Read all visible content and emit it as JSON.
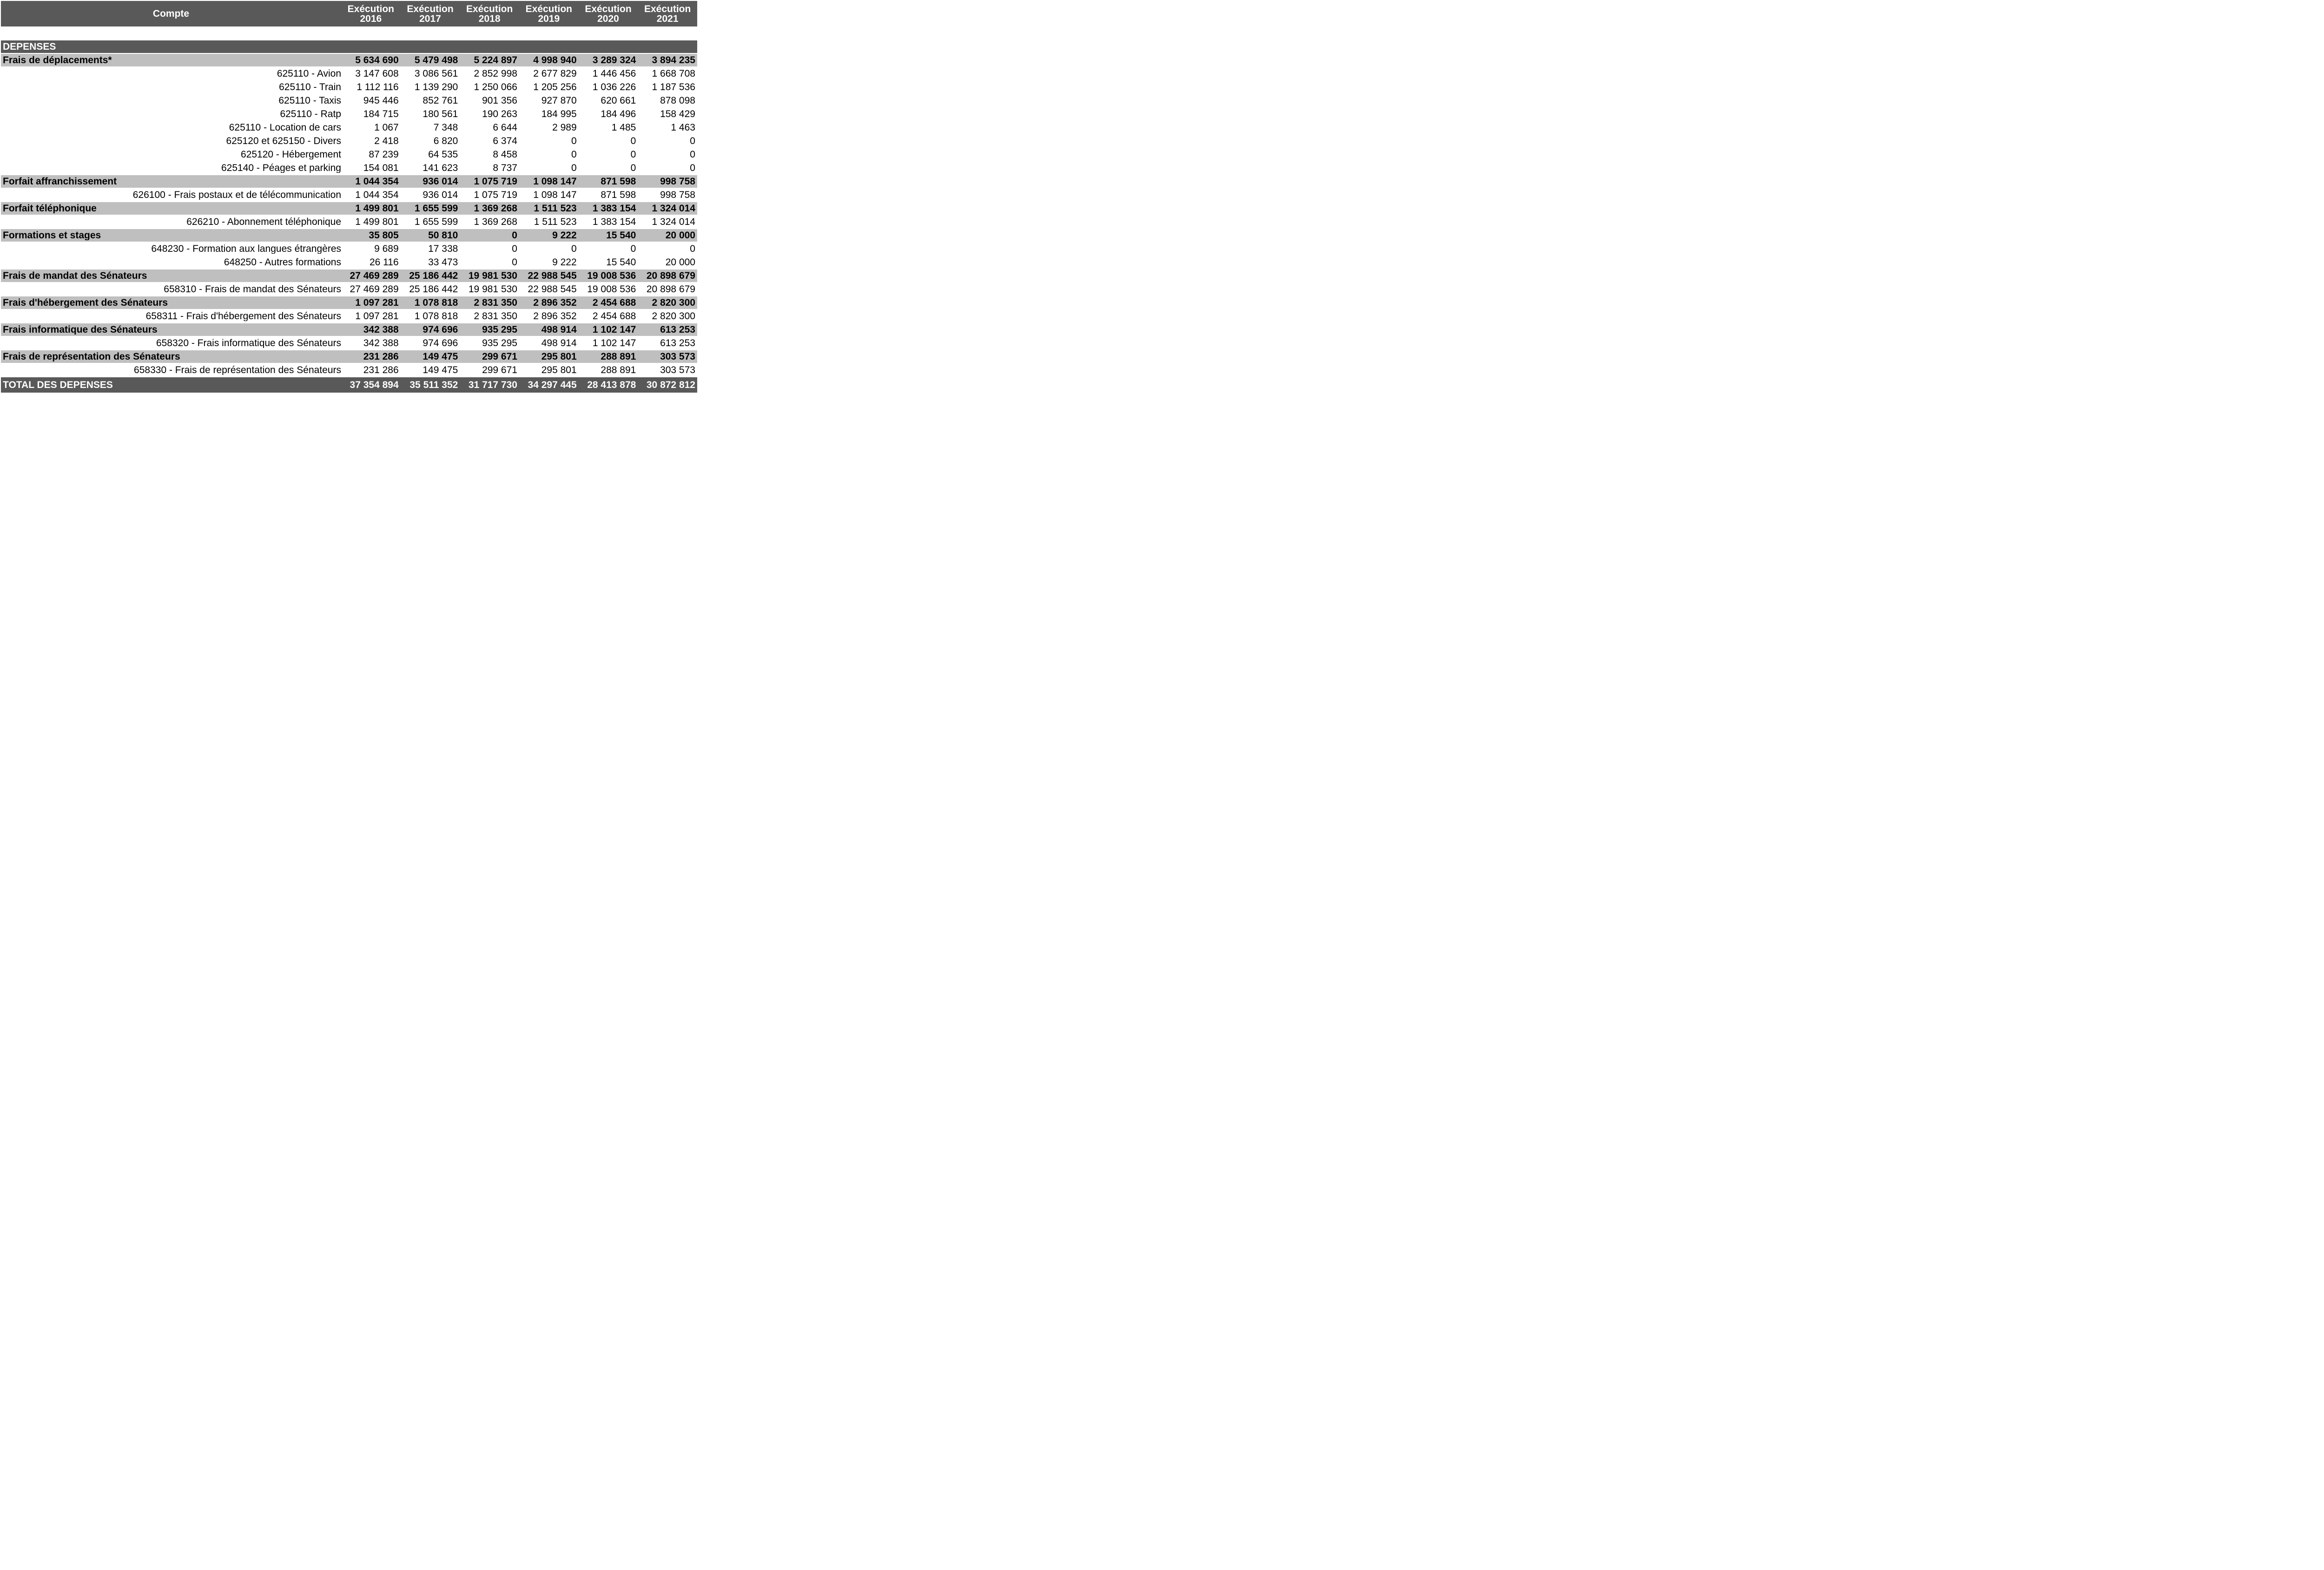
{
  "colors": {
    "header_band": "#595959",
    "section_band": "#bfbfbf",
    "page_background": "#ffffff",
    "header_text": "#ffffff",
    "body_text": "#000000"
  },
  "table": {
    "header": {
      "compte_label": "Compte",
      "year_columns": [
        {
          "label": "Exécution",
          "year": "2016"
        },
        {
          "label": "Exécution",
          "year": "2017"
        },
        {
          "label": "Exécution",
          "year": "2018"
        },
        {
          "label": "Exécution",
          "year": "2019"
        },
        {
          "label": "Exécution",
          "year": "2020"
        },
        {
          "label": "Exécution",
          "year": "2021"
        }
      ]
    },
    "rows": [
      {
        "style": "dark",
        "label": "DEPENSES",
        "values": [
          "",
          "",
          "",
          "",
          "",
          ""
        ]
      },
      {
        "style": "gray",
        "label": "Frais de déplacements*",
        "values": [
          "5 634 690",
          "5 479 498",
          "5 224 897",
          "4 998 940",
          "3 289 324",
          "3 894 235"
        ]
      },
      {
        "style": "detail",
        "label": "625110 - Avion",
        "values": [
          "3 147 608",
          "3 086 561",
          "2 852 998",
          "2 677 829",
          "1 446 456",
          "1 668 708"
        ]
      },
      {
        "style": "detail",
        "label": "625110 - Train",
        "values": [
          "1 112 116",
          "1 139 290",
          "1 250 066",
          "1 205 256",
          "1 036 226",
          "1 187 536"
        ]
      },
      {
        "style": "detail",
        "label": "625110 - Taxis",
        "values": [
          "945 446",
          "852 761",
          "901 356",
          "927 870",
          "620 661",
          "878 098"
        ]
      },
      {
        "style": "detail",
        "label": "625110 - Ratp",
        "values": [
          "184 715",
          "180 561",
          "190 263",
          "184 995",
          "184 496",
          "158 429"
        ]
      },
      {
        "style": "detail",
        "label": "625110 - Location de cars",
        "values": [
          "1 067",
          "7 348",
          "6 644",
          "2 989",
          "1 485",
          "1 463"
        ]
      },
      {
        "style": "detail",
        "label": "625120 et 625150 - Divers",
        "values": [
          "2 418",
          "6 820",
          "6 374",
          "0",
          "0",
          "0"
        ]
      },
      {
        "style": "detail",
        "label": "625120 - Hébergement",
        "values": [
          "87 239",
          "64 535",
          "8 458",
          "0",
          "0",
          "0"
        ]
      },
      {
        "style": "detail",
        "label": "625140 - Péages et parking",
        "values": [
          "154 081",
          "141 623",
          "8 737",
          "0",
          "0",
          "0"
        ]
      },
      {
        "style": "gray",
        "label": "Forfait affranchissement",
        "values": [
          "1 044 354",
          "936 014",
          "1 075 719",
          "1 098 147",
          "871 598",
          "998 758"
        ]
      },
      {
        "style": "detail",
        "label": "626100 - Frais postaux et de télécommunication",
        "values": [
          "1 044 354",
          "936 014",
          "1 075 719",
          "1 098 147",
          "871 598",
          "998 758"
        ]
      },
      {
        "style": "gray",
        "label": "Forfait téléphonique",
        "values": [
          "1 499 801",
          "1 655 599",
          "1 369 268",
          "1 511 523",
          "1 383 154",
          "1 324 014"
        ]
      },
      {
        "style": "detail",
        "label": "626210 - Abonnement téléphonique",
        "values": [
          "1 499 801",
          "1 655 599",
          "1 369 268",
          "1 511 523",
          "1 383 154",
          "1 324 014"
        ]
      },
      {
        "style": "gray",
        "label": "Formations et stages",
        "values": [
          "35 805",
          "50 810",
          "0",
          "9 222",
          "15 540",
          "20 000"
        ]
      },
      {
        "style": "detail",
        "label": "648230 - Formation aux langues étrangères",
        "values": [
          "9 689",
          "17 338",
          "0",
          "0",
          "0",
          "0"
        ]
      },
      {
        "style": "detail",
        "label": "648250 - Autres formations",
        "values": [
          "26 116",
          "33 473",
          "0",
          "9 222",
          "15 540",
          "20 000"
        ]
      },
      {
        "style": "gray",
        "label": "Frais de mandat des Sénateurs",
        "values": [
          "27 469 289",
          "25 186 442",
          "19 981 530",
          "22 988 545",
          "19 008 536",
          "20 898 679"
        ]
      },
      {
        "style": "detail",
        "label": "658310 - Frais de mandat des Sénateurs",
        "values": [
          "27 469 289",
          "25 186 442",
          "19 981 530",
          "22 988 545",
          "19 008 536",
          "20 898 679"
        ]
      },
      {
        "style": "gray",
        "label": "Frais d'hébergement des Sénateurs",
        "values": [
          "1 097 281",
          "1 078 818",
          "2 831 350",
          "2 896 352",
          "2 454 688",
          "2 820 300"
        ]
      },
      {
        "style": "detail",
        "label": "658311 - Frais d'hébergement des Sénateurs",
        "values": [
          "1 097 281",
          "1 078 818",
          "2 831 350",
          "2 896 352",
          "2 454 688",
          "2 820 300"
        ]
      },
      {
        "style": "gray",
        "label": "Frais informatique des Sénateurs",
        "values": [
          "342 388",
          "974 696",
          "935 295",
          "498 914",
          "1 102 147",
          "613 253"
        ]
      },
      {
        "style": "detail",
        "label": "658320 - Frais informatique des Sénateurs",
        "values": [
          "342 388",
          "974 696",
          "935 295",
          "498 914",
          "1 102 147",
          "613 253"
        ]
      },
      {
        "style": "gray",
        "label": "Frais de représentation des Sénateurs",
        "values": [
          "231 286",
          "149 475",
          "299 671",
          "295 801",
          "288 891",
          "303 573"
        ]
      },
      {
        "style": "detail",
        "label": "658330 - Frais de représentation des Sénateurs",
        "values": [
          "231 286",
          "149 475",
          "299 671",
          "295 801",
          "288 891",
          "303 573"
        ]
      },
      {
        "style": "dark total",
        "label": "TOTAL DES DEPENSES",
        "values": [
          "37 354 894",
          "35 511 352",
          "31 717 730",
          "34 297 445",
          "28 413 878",
          "30 872 812"
        ]
      }
    ]
  }
}
